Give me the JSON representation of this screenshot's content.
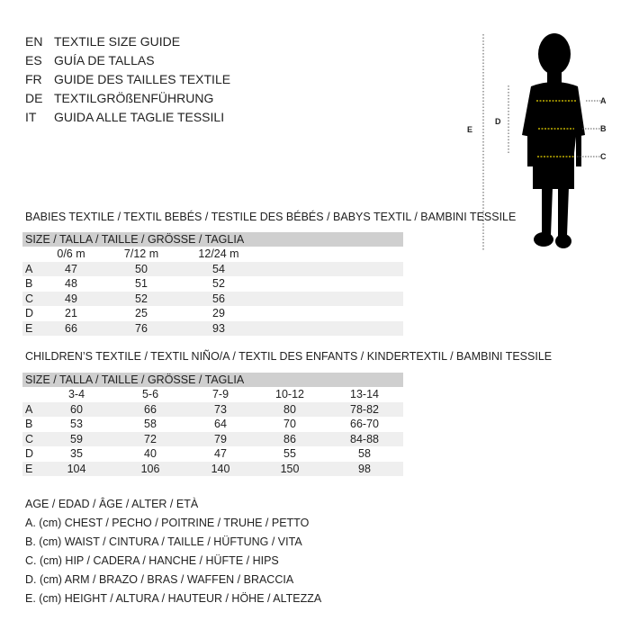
{
  "languages": [
    {
      "code": "EN",
      "text": "TEXTILE SIZE GUIDE"
    },
    {
      "code": "ES",
      "text": "GUÍA DE TALLAS"
    },
    {
      "code": "FR",
      "text": "GUIDE DES TAILLES TEXTILE"
    },
    {
      "code": "DE",
      "text": "TEXTILGRÖßENFÜHRUNG"
    },
    {
      "code": "IT",
      "text": "GUIDA ALLE TAGLIE TESSILI"
    }
  ],
  "figure": {
    "labels": [
      "A",
      "B",
      "C",
      "D",
      "E"
    ],
    "marker_color": "#e8d400"
  },
  "babies": {
    "title": "BABIES TEXTILE / TEXTIL BEBÉS / TESTILE DES BÉBÉS / BABYS TEXTIL / BAMBINI TESSILE",
    "header": "SIZE / TALLA / TAILLE / GRÖSSE / TAGLIA",
    "columns": [
      "0/6 m",
      "7/12 m",
      "12/24 m"
    ],
    "rows": [
      {
        "label": "A",
        "values": [
          "47",
          "50",
          "54"
        ]
      },
      {
        "label": "B",
        "values": [
          "48",
          "51",
          "52"
        ]
      },
      {
        "label": "C",
        "values": [
          "49",
          "52",
          "56"
        ]
      },
      {
        "label": "D",
        "values": [
          "21",
          "25",
          "29"
        ]
      },
      {
        "label": "E",
        "values": [
          "66",
          "76",
          "93"
        ]
      }
    ]
  },
  "children": {
    "title": "CHILDREN’S TEXTILE / TEXTIL NIÑO/A / TEXTIL DES ENFANTS / KINDERTEXTIL / BAMBINI TESSILE",
    "header": "SIZE / TALLA / TAILLE / GRÖSSE / TAGLIA",
    "columns": [
      "3-4",
      "5-6",
      "7-9",
      "10-12",
      "13-14"
    ],
    "rows": [
      {
        "label": "A",
        "values": [
          "60",
          "66",
          "73",
          "80",
          "78-82"
        ]
      },
      {
        "label": "B",
        "values": [
          "53",
          "58",
          "64",
          "70",
          "66-70"
        ]
      },
      {
        "label": "C",
        "values": [
          "59",
          "72",
          "79",
          "86",
          "84-88"
        ]
      },
      {
        "label": "D",
        "values": [
          "35",
          "40",
          "47",
          "55",
          "58"
        ]
      },
      {
        "label": "E",
        "values": [
          "104",
          "106",
          "140",
          "150",
          "98"
        ]
      }
    ]
  },
  "legend": [
    "AGE / EDAD / ÂGE / ALTER / ETÀ",
    "A. (cm) CHEST / PECHO / POITRINE / TRUHE / PETTO",
    "B. (cm) WAIST / CINTURA / TAILLE / HÜFTUNG / VITA",
    "C. (cm) HIP / CADERA / HANCHE / HÜFTE / HIPS",
    "D. (cm) ARM / BRAZO / BRAS / WAFFEN / BRACCIA",
    "E. (cm) HEIGHT / ALTURA / HAUTEUR / HÖHE / ALTEZZA"
  ]
}
